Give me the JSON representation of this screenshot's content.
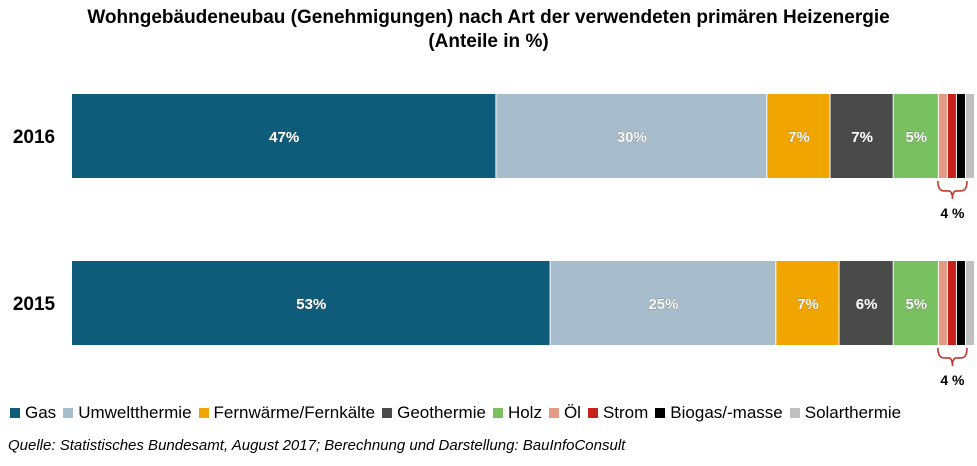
{
  "title": {
    "line1": "Wohngebäudeneubau  (Genehmigungen)  nach Art der verwendeten primären Heizenergie",
    "line2": "(Anteile in %)"
  },
  "source": "Quelle: Statistisches Bundesamt, August 2017; Berechnung und Darstellung: BauInfoConsult",
  "chart_data": {
    "type": "bar",
    "orientation": "horizontal",
    "stacked": true,
    "percent_stacked": true,
    "title": "Wohngebäudeneubau  (Genehmigungen)  nach Art der verwendeten primären Heizenergie (Anteile in %)",
    "categories": [
      "2016",
      "2015"
    ],
    "series": [
      {
        "name": "Gas",
        "color": "#0f5c7a",
        "values": [
          47,
          53
        ],
        "labels": [
          "47%",
          "53%"
        ]
      },
      {
        "name": "Umweltthermie",
        "color": "#a7bdcc",
        "values": [
          30,
          25
        ],
        "labels": [
          "30%",
          "25%"
        ]
      },
      {
        "name": "Fernwärme/Fernkälte",
        "color": "#f0a500",
        "values": [
          7,
          7
        ],
        "labels": [
          "7%",
          "7%"
        ]
      },
      {
        "name": "Geothermie",
        "color": "#4a4a4a",
        "values": [
          7,
          6
        ],
        "labels": [
          "7%",
          "6%"
        ]
      },
      {
        "name": "Holz",
        "color": "#79c061",
        "values": [
          5,
          5
        ],
        "labels": [
          "5%",
          "5%"
        ]
      },
      {
        "name": "Öl",
        "color": "#e39b86",
        "values": [
          1,
          1
        ],
        "labels": [
          "",
          ""
        ]
      },
      {
        "name": "Strom",
        "color": "#c8201a",
        "values": [
          1,
          1
        ],
        "labels": [
          "",
          ""
        ]
      },
      {
        "name": "Biogas/-masse",
        "color": "#000000",
        "values": [
          1,
          1
        ],
        "labels": [
          "",
          ""
        ]
      },
      {
        "name": "Solarthermie",
        "color": "#c0c0c0",
        "values": [
          1,
          1
        ],
        "labels": [
          "",
          ""
        ]
      }
    ],
    "annotations": [
      {
        "category": "2016",
        "text": "4 %",
        "brace_color": "#c0392b"
      },
      {
        "category": "2015",
        "text": "4 %",
        "brace_color": "#c0392b"
      }
    ],
    "xlim": [
      0,
      100
    ],
    "legend_position": "bottom",
    "grid": false
  }
}
